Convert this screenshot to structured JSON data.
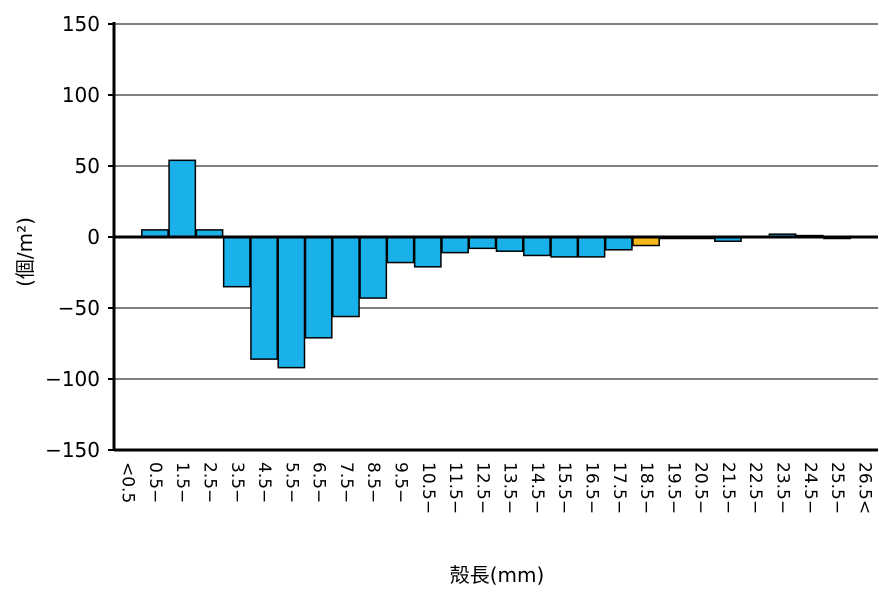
{
  "chart_data": {
    "type": "bar",
    "xlabel": "殻長(mm)",
    "ylabel": "(個/m²)",
    "ylim": [
      -150,
      150
    ],
    "yticks": [
      150,
      100,
      50,
      0,
      -50,
      -100,
      -150
    ],
    "ytick_labels": [
      "150",
      "100",
      "50",
      "0",
      "−50",
      "−100",
      "−150"
    ],
    "grid": true,
    "categories": [
      "<0.5",
      "0.5−",
      "1.5−",
      "2.5−",
      "3.5−",
      "4.5−",
      "5.5−",
      "6.5−",
      "7.5−",
      "8.5−",
      "9.5−",
      "10.5−",
      "11.5−",
      "12.5−",
      "13.5−",
      "14.5−",
      "15.5−",
      "16.5−",
      "17.5−",
      "18.5−",
      "19.5−",
      "20.5−",
      "21.5−",
      "22.5−",
      "23.5−",
      "24.5−",
      "25.5−",
      "26.5<"
    ],
    "values": [
      0,
      5,
      54,
      5,
      -35,
      -86,
      -92,
      -71,
      -56,
      -43,
      -18,
      -21,
      -11,
      -8,
      -10,
      -13,
      -14,
      -14,
      -9,
      -6,
      -1,
      -1,
      -3,
      0,
      2,
      1,
      -1,
      0
    ],
    "colors": {
      "bar_default": "#1ab0ea",
      "bar_highlight": "#f5b81c",
      "bar_stroke": "#000000",
      "grid": "#000000",
      "axis": "#000000"
    },
    "highlight_index": 19
  }
}
